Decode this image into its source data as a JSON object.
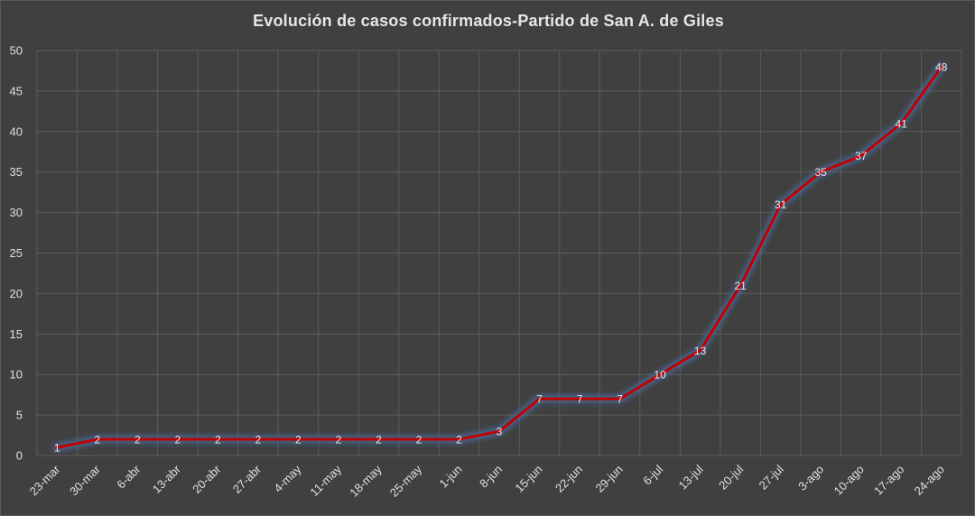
{
  "chart_data": {
    "type": "line",
    "title": "Evolución  de casos confirmados-Partido  de San A. de Giles",
    "xlabel": "",
    "ylabel": "",
    "ylim": [
      0,
      50
    ],
    "yticks": [
      0,
      5,
      10,
      15,
      20,
      25,
      30,
      35,
      40,
      45,
      50
    ],
    "grid": true,
    "legend": "none",
    "x": [
      "23-mar",
      "30-mar",
      "6-abr",
      "13-abr",
      "20-abr",
      "27-abr",
      "4-may",
      "11-may",
      "18-may",
      "25-may",
      "1-jun",
      "8-jun",
      "15-jun",
      "22-jun",
      "29-jun",
      "6-jul",
      "13-jul",
      "20-jul",
      "27-jul",
      "3-ago",
      "10-ago",
      "17-ago",
      "24-ago"
    ],
    "series": [
      {
        "values": [
          1,
          2,
          2,
          2,
          2,
          2,
          2,
          2,
          2,
          2,
          2,
          3,
          7,
          7,
          7,
          10,
          13,
          21,
          31,
          35,
          37,
          41,
          48
        ],
        "color": "#c00000"
      }
    ],
    "colors": {
      "background": "#404040",
      "grid": "#5c5c5c",
      "text": "#e0e0e0",
      "line": "#c00000",
      "glow": "#4a6a9a"
    }
  }
}
